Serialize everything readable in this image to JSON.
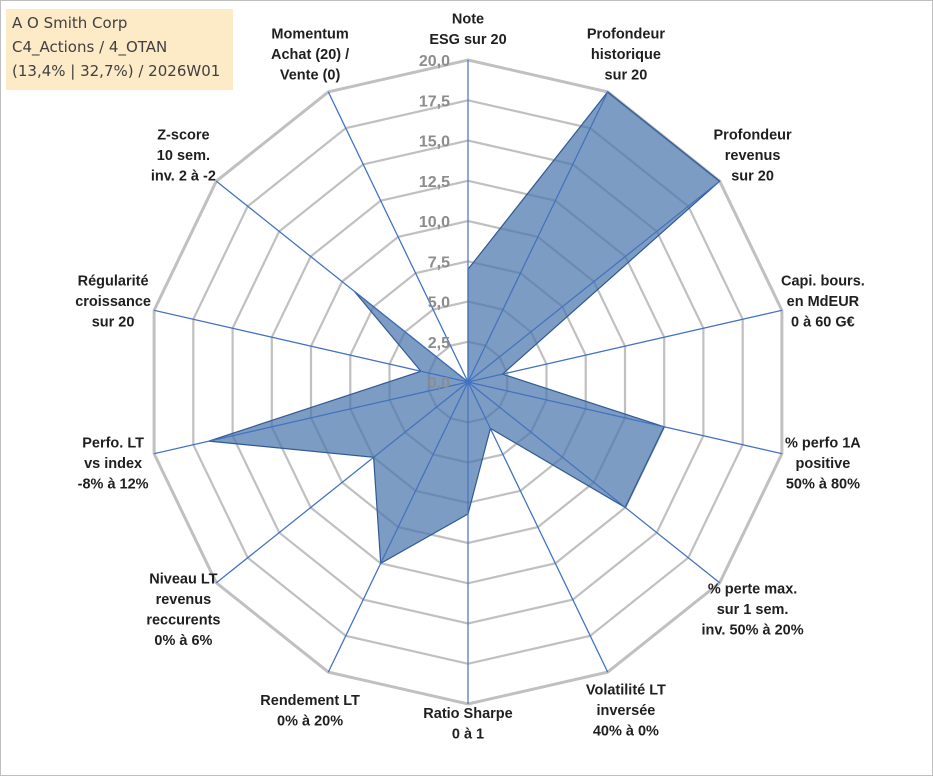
{
  "header": {
    "line1": "A O Smith Corp",
    "line2": "C4_Actions / 4_OTAN",
    "line3": "(13,4% | 32,7%) / 2026W01"
  },
  "chart_data": {
    "type": "radar",
    "rmin": 0,
    "rmax": 20,
    "ticks": [
      "0,0",
      "2,5",
      "5,0",
      "7,5",
      "10,0",
      "12,5",
      "15,0",
      "17,5",
      "20,0"
    ],
    "tick_values": [
      0,
      2.5,
      5,
      7.5,
      10,
      12.5,
      15,
      17.5,
      20
    ],
    "categories": [
      [
        "Note",
        "ESG sur 20"
      ],
      [
        "Profondeur",
        "historique",
        "sur 20"
      ],
      [
        "Profondeur",
        "revenus",
        "sur 20"
      ],
      [
        "Capi. bours.",
        "en MdEUR",
        "0 à 60 G€"
      ],
      [
        "% perfo 1A",
        "positive",
        "50% à 80%"
      ],
      [
        "% perte max.",
        "sur 1 sem.",
        "inv. 50% à 20%"
      ],
      [
        "Volatilité LT",
        "inversée",
        "40% à 0%"
      ],
      [
        "Ratio Sharpe",
        "0 à 1"
      ],
      [
        "Rendement LT",
        "0% à 20%"
      ],
      [
        "Niveau LT",
        "revenus",
        "reccurents",
        "0% à 6%"
      ],
      [
        "Perfo. LT",
        "vs index",
        "-8% à 12%"
      ],
      [
        "Régularité",
        "croissance",
        "sur 20"
      ],
      [
        "Z-score",
        "10 sem.",
        "inv. 2 à -2"
      ],
      [
        "Momentum",
        "Achat (20) /",
        "Vente (0)"
      ]
    ],
    "series": [
      {
        "values": [
          7.0,
          20.0,
          20.0,
          2.2,
          12.5,
          12.5,
          3.2,
          8.2,
          12.5,
          7.5,
          16.5,
          3.0,
          9.0,
          0.0
        ]
      }
    ],
    "colors": {
      "fill": "#4a76ad",
      "fill_opacity": 0.72,
      "stroke": "#2f5a92",
      "spoke": "#4472c4",
      "grid": "#c0c0c0"
    },
    "grid": true,
    "legend": "none"
  }
}
